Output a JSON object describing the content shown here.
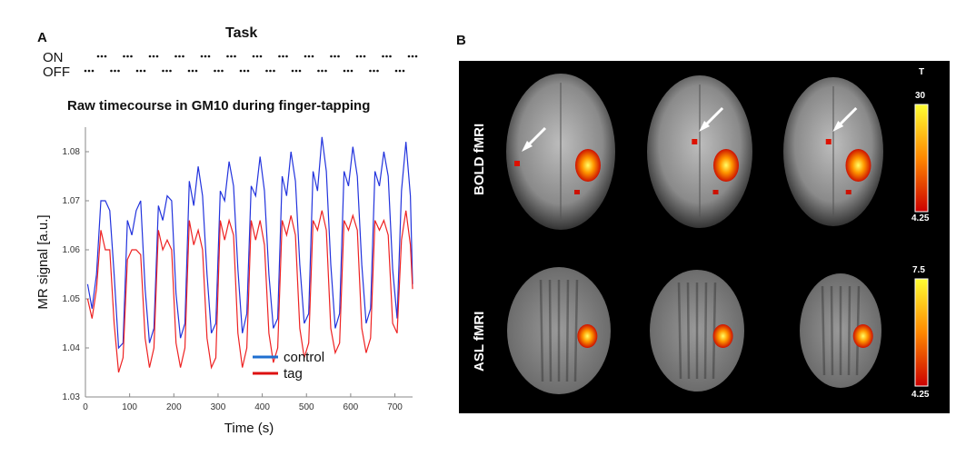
{
  "panel_a": {
    "label": "A",
    "task": {
      "title": "Task",
      "on_label": "ON",
      "off_label": "OFF"
    },
    "plot_title": "Raw timecourse in GM10 during finger-tapping"
  },
  "panel_b": {
    "label": "B",
    "rows": [
      {
        "label": "BOLD fMRI"
      },
      {
        "label": "ASL fMRI"
      }
    ],
    "colorbar_title": "T",
    "colorbars": [
      {
        "max": "30",
        "min": "4.25"
      },
      {
        "max": "7.5",
        "min": "4.25"
      }
    ],
    "colors": {
      "bg": "#000000",
      "cb_low": "#cc0000",
      "cb_high": "#ffff33"
    }
  },
  "chart_data": {
    "type": "line",
    "xlabel": "Time (s)",
    "ylabel": "MR signal [a.u.]",
    "xlim": [
      0,
      740
    ],
    "ylim": [
      1.03,
      1.085
    ],
    "xticks": [
      "0",
      "100",
      "200",
      "300",
      "400",
      "500",
      "600",
      "700"
    ],
    "yticks": [
      "1.03",
      "1.04",
      "1.05",
      "1.06",
      "1.07",
      "1.08"
    ],
    "legend_position": "bottom-right",
    "series": [
      {
        "name": "control",
        "color": "#2233dd",
        "legend_color": "#1f6fd0",
        "x": [
          5,
          15,
          25,
          35,
          45,
          55,
          65,
          75,
          85,
          95,
          105,
          115,
          125,
          135,
          145,
          155,
          165,
          175,
          185,
          195,
          205,
          215,
          225,
          235,
          245,
          255,
          265,
          275,
          285,
          295,
          305,
          315,
          325,
          335,
          345,
          355,
          365,
          375,
          385,
          395,
          405,
          415,
          425,
          435,
          445,
          455,
          465,
          475,
          485,
          495,
          505,
          515,
          525,
          535,
          545,
          555,
          565,
          575,
          585,
          595,
          605,
          615,
          625,
          635,
          645,
          655,
          665,
          675,
          685,
          695,
          705,
          715,
          725,
          735,
          740
        ],
        "values": [
          1.053,
          1.048,
          1.055,
          1.07,
          1.07,
          1.068,
          1.055,
          1.04,
          1.041,
          1.066,
          1.063,
          1.068,
          1.07,
          1.052,
          1.041,
          1.044,
          1.069,
          1.066,
          1.071,
          1.07,
          1.051,
          1.042,
          1.045,
          1.074,
          1.069,
          1.077,
          1.071,
          1.055,
          1.043,
          1.045,
          1.072,
          1.07,
          1.078,
          1.073,
          1.056,
          1.043,
          1.047,
          1.073,
          1.071,
          1.079,
          1.072,
          1.055,
          1.044,
          1.046,
          1.075,
          1.071,
          1.08,
          1.074,
          1.057,
          1.045,
          1.047,
          1.076,
          1.072,
          1.083,
          1.076,
          1.057,
          1.044,
          1.047,
          1.076,
          1.073,
          1.081,
          1.075,
          1.057,
          1.045,
          1.048,
          1.076,
          1.073,
          1.08,
          1.075,
          1.056,
          1.046,
          1.072,
          1.082,
          1.071,
          1.053
        ]
      },
      {
        "name": "tag",
        "color": "#ee2222",
        "legend_color": "#dd1111",
        "x": [
          5,
          15,
          25,
          35,
          45,
          55,
          65,
          75,
          85,
          95,
          105,
          115,
          125,
          135,
          145,
          155,
          165,
          175,
          185,
          195,
          205,
          215,
          225,
          235,
          245,
          255,
          265,
          275,
          285,
          295,
          305,
          315,
          325,
          335,
          345,
          355,
          365,
          375,
          385,
          395,
          405,
          415,
          425,
          435,
          445,
          455,
          465,
          475,
          485,
          495,
          505,
          515,
          525,
          535,
          545,
          555,
          565,
          575,
          585,
          595,
          605,
          615,
          625,
          635,
          645,
          655,
          665,
          675,
          685,
          695,
          705,
          715,
          725,
          735,
          740
        ],
        "values": [
          1.05,
          1.046,
          1.052,
          1.064,
          1.06,
          1.06,
          1.045,
          1.035,
          1.038,
          1.058,
          1.06,
          1.06,
          1.059,
          1.042,
          1.036,
          1.04,
          1.064,
          1.06,
          1.062,
          1.06,
          1.041,
          1.036,
          1.04,
          1.066,
          1.061,
          1.064,
          1.06,
          1.042,
          1.036,
          1.038,
          1.066,
          1.062,
          1.066,
          1.063,
          1.043,
          1.036,
          1.04,
          1.066,
          1.062,
          1.066,
          1.061,
          1.043,
          1.037,
          1.04,
          1.066,
          1.063,
          1.067,
          1.063,
          1.044,
          1.038,
          1.041,
          1.066,
          1.064,
          1.068,
          1.064,
          1.044,
          1.039,
          1.041,
          1.066,
          1.064,
          1.067,
          1.064,
          1.044,
          1.039,
          1.042,
          1.066,
          1.064,
          1.066,
          1.063,
          1.045,
          1.043,
          1.062,
          1.068,
          1.061,
          1.052
        ]
      }
    ]
  }
}
